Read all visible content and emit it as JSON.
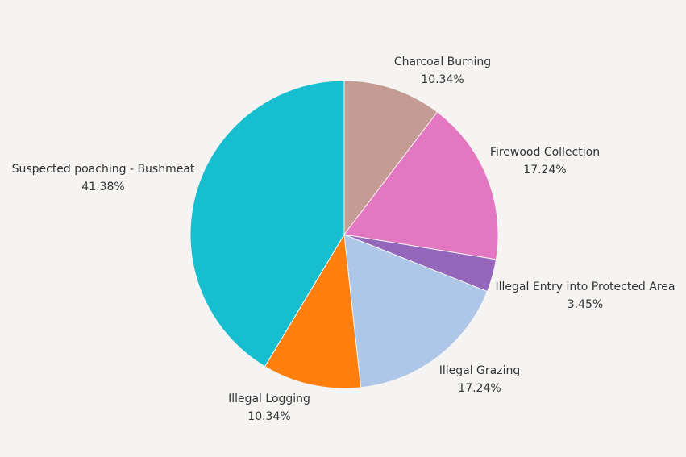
{
  "chart_data": {
    "type": "pie",
    "slices": [
      {
        "label": "Charcoal Burning",
        "value": 10.34,
        "value_label": "10.34%",
        "color": "#c49c94"
      },
      {
        "label": "Firewood Collection",
        "value": 17.24,
        "value_label": "17.24%",
        "color": "#e377c2"
      },
      {
        "label": "Illegal Entry into Protected Area",
        "value": 3.45,
        "value_label": "3.45%",
        "color": "#9467bd"
      },
      {
        "label": "Illegal Grazing",
        "value": 17.24,
        "value_label": "17.24%",
        "color": "#aec7e8"
      },
      {
        "label": "Illegal Logging",
        "value": 10.34,
        "value_label": "10.34%",
        "color": "#ff7f0e"
      },
      {
        "label": "Suspected poaching - Bushmeat",
        "value": 41.38,
        "value_label": "41.38%",
        "color": "#17becf"
      }
    ],
    "start_position": "top",
    "direction": "clockwise",
    "background": "#f5f4f2"
  }
}
